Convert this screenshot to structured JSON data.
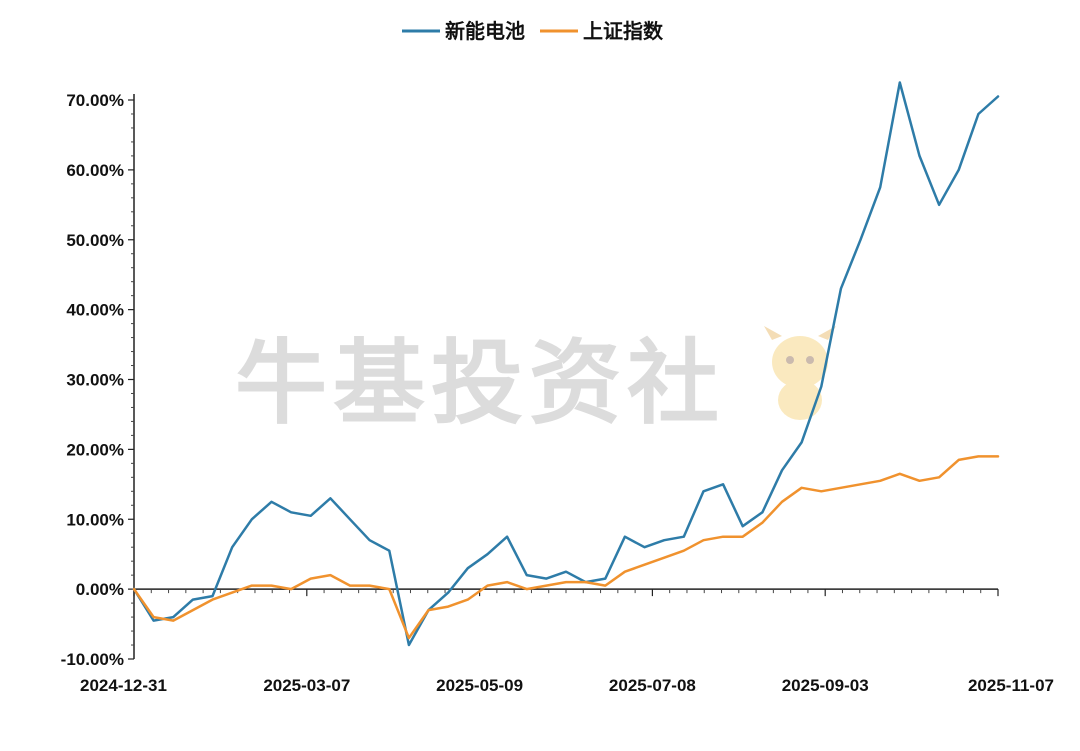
{
  "chart_data": {
    "type": "line",
    "title": "",
    "xlabel": "",
    "ylabel": "",
    "ylim": [
      -10,
      70
    ],
    "y_ticks": [
      -10,
      0,
      10,
      20,
      30,
      40,
      50,
      60,
      70
    ],
    "y_tick_labels": [
      "-10.00%",
      "0.00%",
      "10.00%",
      "20.00%",
      "30.00%",
      "40.00%",
      "50.00%",
      "60.00%",
      "70.00%"
    ],
    "x_tick_labels": [
      "2024-12-31",
      "2025-03-07",
      "2025-05-09",
      "2025-07-08",
      "2025-09-03",
      "2025-11-07"
    ],
    "legend_position": "top-center",
    "watermark": "牛基投资社",
    "x_dates": [
      "2024-12-31",
      "2025-01-07",
      "2025-01-14",
      "2025-01-21",
      "2025-01-28",
      "2025-02-07",
      "2025-02-14",
      "2025-02-21",
      "2025-02-28",
      "2025-03-07",
      "2025-03-14",
      "2025-03-21",
      "2025-03-28",
      "2025-04-03",
      "2025-04-07",
      "2025-04-14",
      "2025-04-21",
      "2025-04-28",
      "2025-05-09",
      "2025-05-16",
      "2025-05-23",
      "2025-05-30",
      "2025-06-06",
      "2025-06-13",
      "2025-06-20",
      "2025-06-27",
      "2025-07-04",
      "2025-07-08",
      "2025-07-15",
      "2025-07-22",
      "2025-07-29",
      "2025-08-05",
      "2025-08-12",
      "2025-08-19",
      "2025-08-26",
      "2025-09-03",
      "2025-09-10",
      "2025-09-17",
      "2025-09-24",
      "2025-09-30",
      "2025-10-10",
      "2025-10-17",
      "2025-10-24",
      "2025-10-31",
      "2025-11-07"
    ],
    "series": [
      {
        "name": "新能电池",
        "color": "#2e7ca8",
        "values": [
          0.0,
          -4.5,
          -4.0,
          -1.5,
          -1.0,
          6.0,
          10.0,
          12.5,
          11.0,
          10.5,
          13.0,
          10.0,
          7.0,
          5.5,
          -8.0,
          -3.0,
          -0.5,
          3.0,
          5.0,
          7.5,
          2.0,
          1.5,
          2.5,
          1.0,
          1.5,
          7.5,
          6.0,
          7.0,
          7.5,
          14.0,
          15.0,
          9.0,
          11.0,
          17.0,
          21.0,
          29.0,
          43.0,
          50.0,
          57.5,
          72.5,
          62.0,
          55.0,
          60.0,
          68.0,
          70.5
        ]
      },
      {
        "name": "上证指数",
        "color": "#f0922e",
        "values": [
          0.0,
          -4.0,
          -4.5,
          -3.0,
          -1.5,
          -0.5,
          0.5,
          0.5,
          0.0,
          1.5,
          2.0,
          0.5,
          0.5,
          0.0,
          -7.0,
          -3.0,
          -2.5,
          -1.5,
          0.5,
          1.0,
          0.0,
          0.5,
          1.0,
          1.0,
          0.5,
          2.5,
          3.5,
          4.5,
          5.5,
          7.0,
          7.5,
          7.5,
          9.5,
          12.5,
          14.5,
          14.0,
          14.5,
          15.0,
          15.5,
          16.5,
          15.5,
          16.0,
          18.5,
          19.0,
          19.0
        ]
      }
    ]
  }
}
